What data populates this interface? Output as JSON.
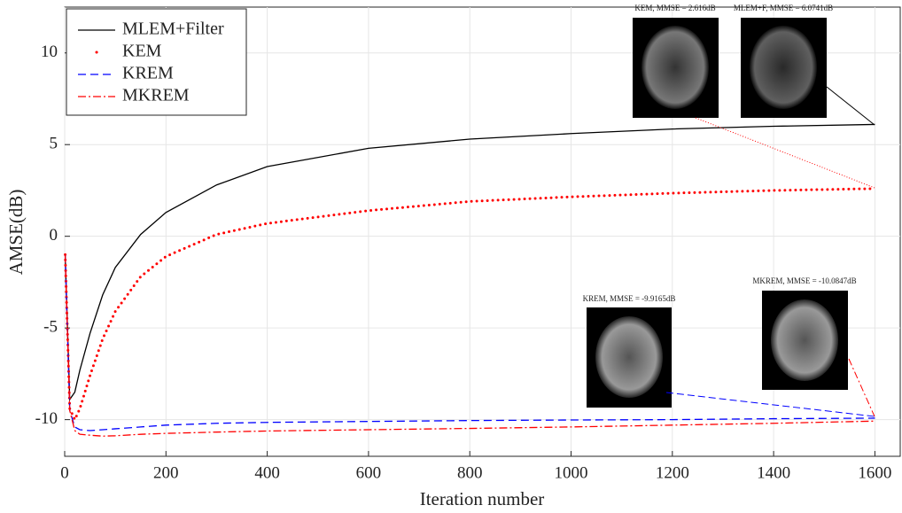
{
  "chart_data": {
    "type": "line",
    "xlabel": "Iteration number",
    "ylabel": "AMSE(dB)",
    "x": [
      1,
      10,
      20,
      30,
      50,
      75,
      100,
      150,
      200,
      300,
      400,
      600,
      800,
      1000,
      1200,
      1400,
      1600
    ],
    "series": [
      {
        "name": "MLEM+Filter",
        "color": "#000000",
        "style": "solid",
        "values": [
          -1,
          -8.9,
          -8.5,
          -7.3,
          -5.3,
          -3.2,
          -1.7,
          0.1,
          1.3,
          2.8,
          3.8,
          4.8,
          5.3,
          5.6,
          5.85,
          6.0,
          6.1
        ]
      },
      {
        "name": "KEM",
        "color": "#ff0000",
        "style": "dotted",
        "values": [
          -1,
          -9.4,
          -10,
          -9.4,
          -7.6,
          -5.6,
          -4.1,
          -2.2,
          -1.1,
          0.1,
          0.7,
          1.4,
          1.9,
          2.15,
          2.35,
          2.5,
          2.6
        ]
      },
      {
        "name": "KREM",
        "color": "#0000ff",
        "style": "dashed",
        "values": [
          -1,
          -9.5,
          -10.4,
          -10.55,
          -10.6,
          -10.55,
          -10.5,
          -10.4,
          -10.3,
          -10.2,
          -10.15,
          -10.1,
          -10.05,
          -10.02,
          -10.0,
          -9.95,
          -9.92
        ]
      },
      {
        "name": "MKREM",
        "color": "#ff0000",
        "style": "dashdot",
        "values": [
          -1,
          -9.5,
          -10.6,
          -10.8,
          -10.85,
          -10.9,
          -10.88,
          -10.8,
          -10.75,
          -10.68,
          -10.62,
          -10.55,
          -10.48,
          -10.4,
          -10.3,
          -10.2,
          -10.08
        ]
      }
    ],
    "xlim": [
      0,
      1650
    ],
    "ylim": [
      -12,
      12.5
    ],
    "xticks": [
      0,
      200,
      400,
      600,
      800,
      1000,
      1200,
      1400,
      1600
    ],
    "yticks": [
      -10,
      -5,
      0,
      5,
      10
    ],
    "grid": true,
    "legend": "upper left",
    "insets": [
      "KEM, MMSE = 2.616dB",
      "MLEM+F, MMSE = 6.0741dB",
      "KREM, MMSE = -9.9165dB",
      "MKREM, MMSE = -10.0847dB"
    ]
  }
}
